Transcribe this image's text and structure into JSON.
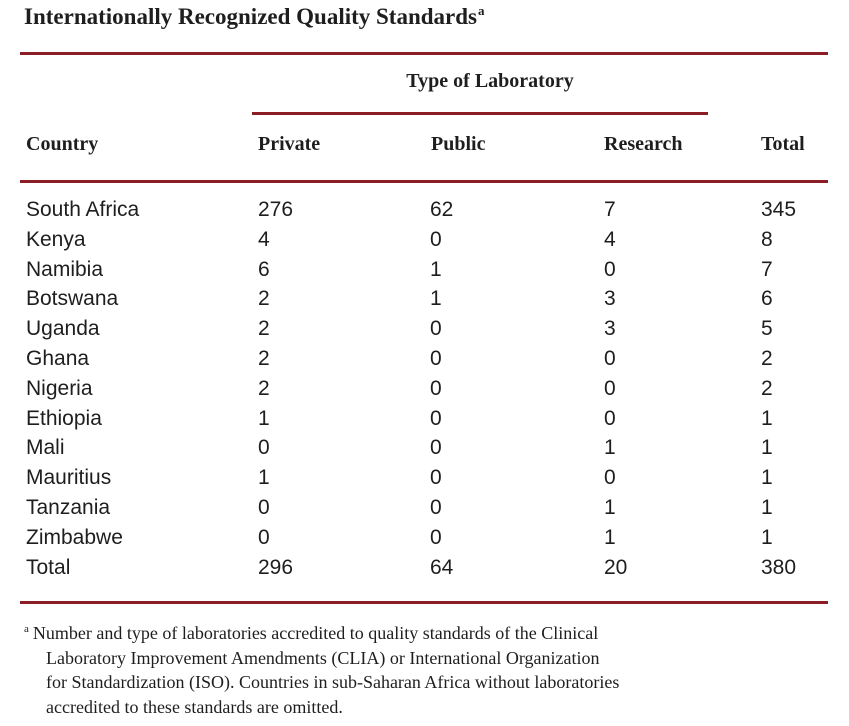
{
  "title": {
    "text": "Internationally Recognized Quality Standards",
    "footnote_marker": "a"
  },
  "table": {
    "group_header": "Type of Laboratory",
    "columns": {
      "country": "Country",
      "private": "Private",
      "public": "Public",
      "research": "Research",
      "total": "Total"
    },
    "rows": [
      {
        "country": "South Africa",
        "private": "276",
        "public": "62",
        "research": "7",
        "total": "345"
      },
      {
        "country": "Kenya",
        "private": "4",
        "public": "0",
        "research": "4",
        "total": "8"
      },
      {
        "country": "Namibia",
        "private": "6",
        "public": "1",
        "research": "0",
        "total": "7"
      },
      {
        "country": "Botswana",
        "private": "2",
        "public": "1",
        "research": "3",
        "total": "6"
      },
      {
        "country": "Uganda",
        "private": "2",
        "public": "0",
        "research": "3",
        "total": "5"
      },
      {
        "country": "Ghana",
        "private": "2",
        "public": "0",
        "research": "0",
        "total": "2"
      },
      {
        "country": "Nigeria",
        "private": "2",
        "public": "0",
        "research": "0",
        "total": "2"
      },
      {
        "country": "Ethiopia",
        "private": "1",
        "public": "0",
        "research": "0",
        "total": "1"
      },
      {
        "country": "Mali",
        "private": "0",
        "public": "0",
        "research": "1",
        "total": "1"
      },
      {
        "country": "Mauritius",
        "private": "1",
        "public": "0",
        "research": "0",
        "total": "1"
      },
      {
        "country": "Tanzania",
        "private": "0",
        "public": "0",
        "research": "1",
        "total": "1"
      },
      {
        "country": "Zimbabwe",
        "private": "0",
        "public": "0",
        "research": "1",
        "total": "1"
      },
      {
        "country": "Total",
        "private": "296",
        "public": "64",
        "research": "20",
        "total": "380"
      }
    ]
  },
  "footnote": {
    "marker": "a",
    "lines": [
      "Number and type of laboratories accredited to quality standards of the Clinical",
      "Laboratory Improvement Amendments (CLIA) or International Organization",
      "for Standardization (ISO). Countries in sub-Saharan Africa without laboratories",
      "accredited to these standards are omitted."
    ]
  },
  "colors": {
    "rule": "#8a1e24",
    "text": "#1e1e1e"
  }
}
